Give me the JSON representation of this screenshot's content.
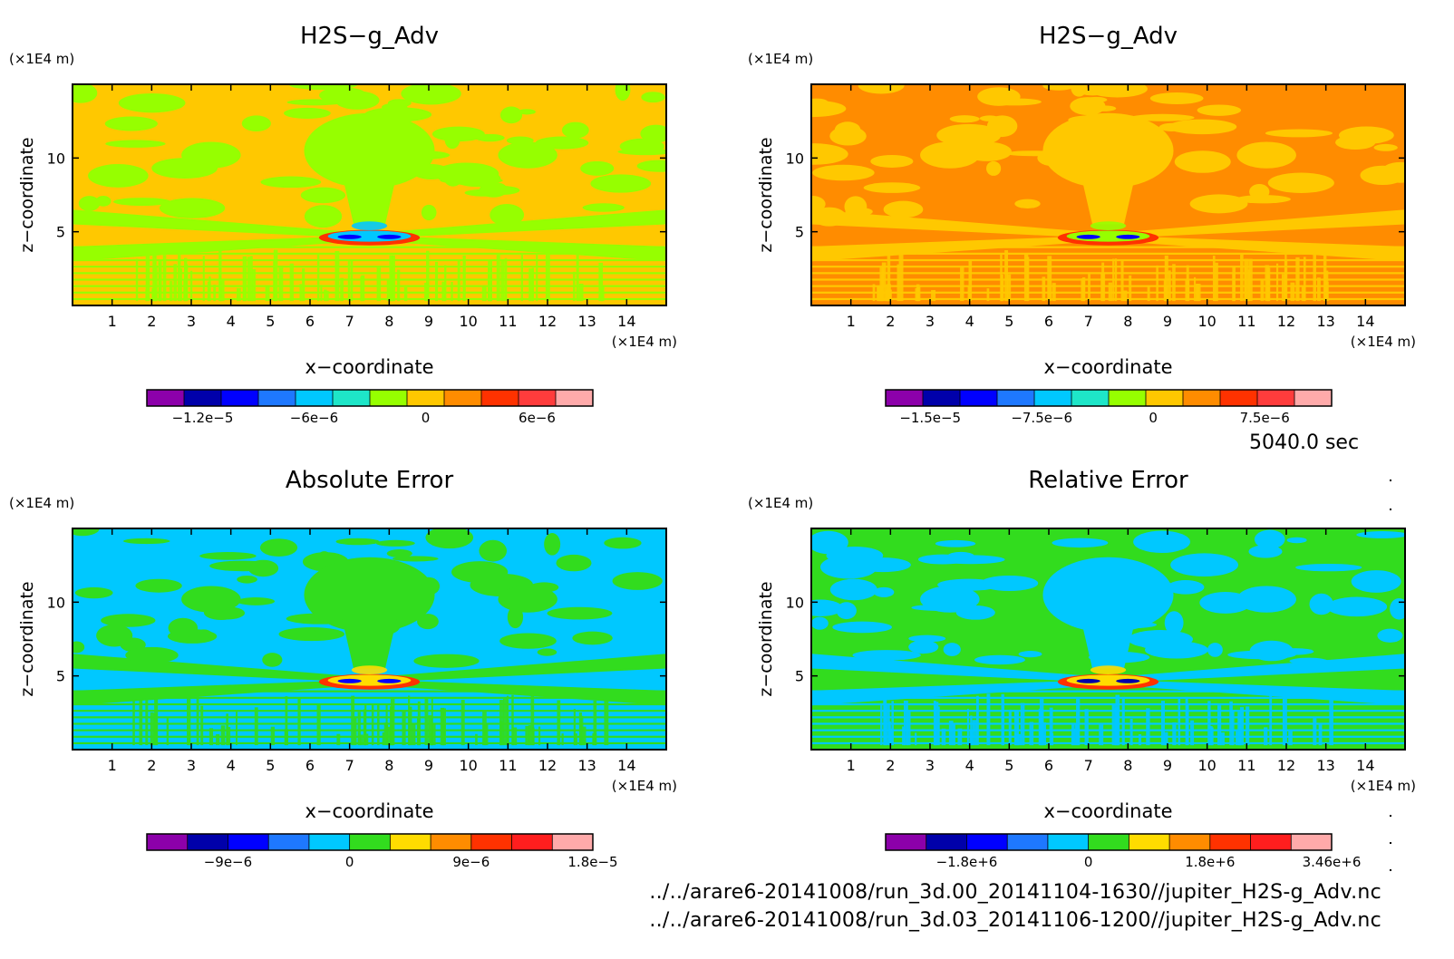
{
  "time_label": "5040.0 sec",
  "footer": {
    "file1": "../../arare6-20141008/run_3d.00_20141104-1630//jupiter_H2S-g_Adv.nc",
    "file2": "../../arare6-20141008/run_3d.03_20141106-1200//jupiter_H2S-g_Adv.nc"
  },
  "chart_data": [
    {
      "type": "heatmap",
      "title": "H2S−g_Adv",
      "xlabel": "x−coordinate",
      "ylabel": "z−coordinate",
      "x_unit": "(×1E4 m)",
      "y_unit": "(×1E4 m)",
      "xlim": [
        0,
        15
      ],
      "ylim": [
        0,
        15
      ],
      "xticks": [
        "1",
        "2",
        "3",
        "4",
        "5",
        "6",
        "7",
        "8",
        "9",
        "10",
        "11",
        "12",
        "13",
        "14"
      ],
      "yticks": [
        "5",
        "10"
      ],
      "colorbar": {
        "colors": [
          "#8c00aa",
          "#0000aa",
          "#0000ff",
          "#1e78ff",
          "#00c8ff",
          "#1ee6c8",
          "#96ff00",
          "#ffc800",
          "#ff8c00",
          "#ff3200",
          "#ff3c3c",
          "#ffaaaa"
        ],
        "labels": [
          "−1.2e−5",
          "−6e−6",
          "0",
          "6e−6"
        ],
        "label_positions": [
          1.5,
          4.5,
          7.5,
          10.5
        ]
      },
      "background_color": "#ffc800",
      "pattern_color": "#96ff00",
      "center_colors": [
        "#ff3200",
        "#0000ff",
        "#00c8ff"
      ]
    },
    {
      "type": "heatmap",
      "title": "H2S−g_Adv",
      "xlabel": "x−coordinate",
      "ylabel": "z−coordinate",
      "x_unit": "(×1E4 m)",
      "y_unit": "(×1E4 m)",
      "xlim": [
        0,
        15
      ],
      "ylim": [
        0,
        15
      ],
      "xticks": [
        "1",
        "2",
        "3",
        "4",
        "5",
        "6",
        "7",
        "8",
        "9",
        "10",
        "11",
        "12",
        "13",
        "14"
      ],
      "yticks": [
        "5",
        "10"
      ],
      "colorbar": {
        "colors": [
          "#8c00aa",
          "#0000aa",
          "#0000ff",
          "#1e78ff",
          "#00c8ff",
          "#1ee6c8",
          "#96ff00",
          "#ffc800",
          "#ff8c00",
          "#ff3200",
          "#ff3c3c",
          "#ffaaaa"
        ],
        "labels": [
          "−1.5e−5",
          "−7.5e−6",
          "0",
          "7.5e−6"
        ],
        "label_positions": [
          1.2,
          4.2,
          7.2,
          10.2
        ]
      },
      "background_color": "#ff8c00",
      "pattern_color": "#ffc800",
      "center_colors": [
        "#ff3200",
        "#0000ff",
        "#96ff00"
      ]
    },
    {
      "type": "heatmap",
      "title": "Absolute Error",
      "xlabel": "x−coordinate",
      "ylabel": "z−coordinate",
      "x_unit": "(×1E4 m)",
      "y_unit": "(×1E4 m)",
      "xlim": [
        0,
        15
      ],
      "ylim": [
        0,
        15
      ],
      "xticks": [
        "1",
        "2",
        "3",
        "4",
        "5",
        "6",
        "7",
        "8",
        "9",
        "10",
        "11",
        "12",
        "13",
        "14"
      ],
      "yticks": [
        "5",
        "10"
      ],
      "colorbar": {
        "colors": [
          "#8c00aa",
          "#0000aa",
          "#0000ff",
          "#1e78ff",
          "#00c8ff",
          "#32dc1e",
          "#ffdc00",
          "#ff8c00",
          "#ff3200",
          "#ff1e1e",
          "#ffaaaa"
        ],
        "labels": [
          "−9e−6",
          "0",
          "9e−6",
          "1.8e−5"
        ],
        "label_positions": [
          2.0,
          5.0,
          8.0,
          11.0
        ]
      },
      "background_color": "#00c8ff",
      "pattern_color": "#32dc1e",
      "center_colors": [
        "#ff3200",
        "#0000ff",
        "#ffdc00"
      ]
    },
    {
      "type": "heatmap",
      "title": "Relative Error",
      "xlabel": "x−coordinate",
      "ylabel": "z−coordinate",
      "x_unit": "(×1E4 m)",
      "y_unit": "(×1E4 m)",
      "xlim": [
        0,
        15
      ],
      "ylim": [
        0,
        15
      ],
      "xticks": [
        "1",
        "2",
        "3",
        "4",
        "5",
        "6",
        "7",
        "8",
        "9",
        "10",
        "11",
        "12",
        "13",
        "14"
      ],
      "yticks": [
        "5",
        "10"
      ],
      "colorbar": {
        "colors": [
          "#8c00aa",
          "#0000aa",
          "#0000ff",
          "#1e78ff",
          "#00c8ff",
          "#32dc1e",
          "#ffdc00",
          "#ff8c00",
          "#ff3200",
          "#ff1e1e",
          "#ffaaaa"
        ],
        "labels": [
          "−1.8e+6",
          "0",
          "1.8e+6",
          "3.46e+6"
        ],
        "label_positions": [
          2.0,
          5.0,
          8.0,
          11.0
        ]
      },
      "background_color": "#32dc1e",
      "pattern_color": "#00c8ff",
      "center_colors": [
        "#ff3200",
        "#0000aa",
        "#ffdc00"
      ]
    }
  ]
}
